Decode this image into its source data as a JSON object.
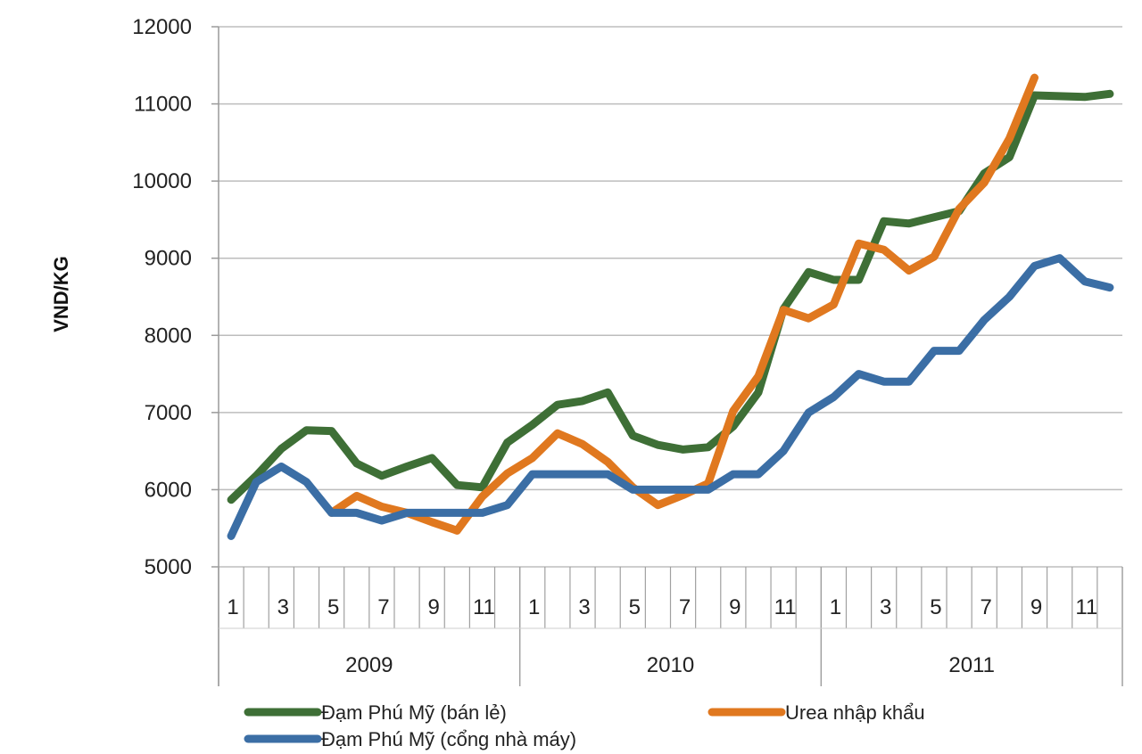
{
  "chart_data": {
    "type": "line",
    "title": "",
    "xlabel": "",
    "ylabel": "VND/KG",
    "ylim": [
      5000,
      12000
    ],
    "yticks": [
      "5000",
      "6000",
      "7000",
      "8000",
      "9000",
      "10000",
      "11000",
      "12000"
    ],
    "grid": true,
    "years": [
      "2009",
      "2010",
      "2011"
    ],
    "month_tick_labels": [
      "1",
      "3",
      "5",
      "7",
      "9",
      "11"
    ],
    "x": [
      1,
      2,
      3,
      4,
      5,
      6,
      7,
      8,
      9,
      10,
      11,
      12,
      13,
      14,
      15,
      16,
      17,
      18,
      19,
      20,
      21,
      22,
      23,
      24,
      25,
      26,
      27,
      28,
      29,
      30,
      31,
      32,
      33,
      34,
      35,
      36
    ],
    "series": [
      {
        "name": "Đạm Phú Mỹ (bán lẻ)",
        "color": "#3e6f36",
        "values": [
          5870,
          6180,
          6530,
          6770,
          6760,
          6340,
          6180,
          6300,
          6410,
          6060,
          6030,
          6610,
          6840,
          7100,
          7150,
          7260,
          6700,
          6580,
          6520,
          6550,
          6820,
          7260,
          8340,
          8820,
          8720,
          8720,
          9480,
          9450,
          9530,
          9610,
          10100,
          10310,
          11110,
          11100,
          11090,
          11130
        ]
      },
      {
        "name": "Urea nhập khẩu",
        "color": "#e0781f",
        "values": [
          null,
          null,
          null,
          null,
          5700,
          5920,
          5780,
          5700,
          5580,
          5470,
          5910,
          6210,
          6410,
          6730,
          6590,
          6360,
          6030,
          5800,
          5930,
          6080,
          7020,
          7470,
          8330,
          8220,
          8400,
          9190,
          9110,
          8840,
          9020,
          9640,
          9980,
          10550,
          11340,
          null,
          null,
          null
        ]
      },
      {
        "name": "Đạm Phú Mỹ (cổng nhà máy)",
        "color": "#3b6ea5",
        "values": [
          5400,
          6100,
          6300,
          6100,
          5700,
          5700,
          5600,
          5700,
          5700,
          5700,
          5700,
          5800,
          6200,
          6200,
          6200,
          6200,
          6000,
          6000,
          6000,
          6000,
          6200,
          6200,
          6500,
          7000,
          7200,
          7500,
          7400,
          7400,
          7800,
          7800,
          8200,
          8500,
          8900,
          9000,
          8700,
          8620
        ]
      }
    ],
    "legend": [
      "Đạm Phú Mỹ (bán lẻ)",
      "Urea nhập khẩu",
      "Đạm Phú Mỹ (cổng nhà máy)"
    ]
  }
}
